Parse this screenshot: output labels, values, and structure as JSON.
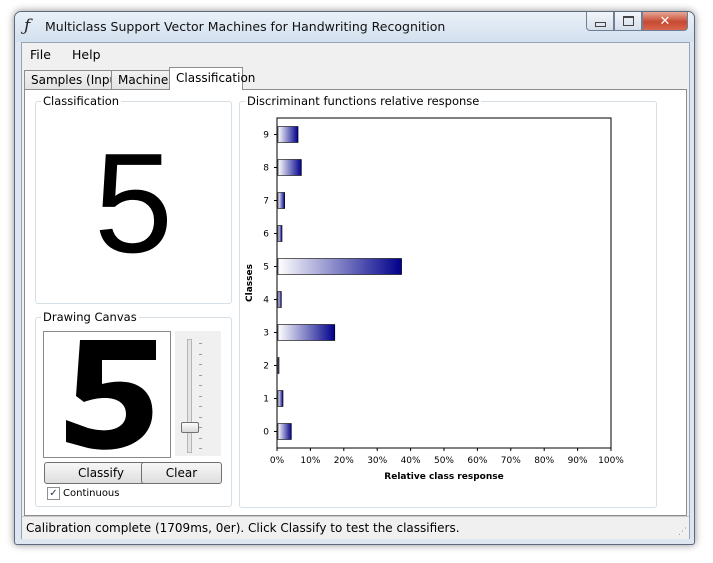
{
  "window": {
    "title": "Multiclass Support Vector Machines for Handwriting Recognition",
    "icon": "function-f-icon"
  },
  "caption_buttons": {
    "minimize": "minimize-icon",
    "maximize": "maximize-icon",
    "close": "close-icon"
  },
  "menu": [
    {
      "label": "File"
    },
    {
      "label": "Help"
    }
  ],
  "tabs": [
    {
      "label": "Samples (Input)",
      "active": false
    },
    {
      "label": "Machines",
      "active": false
    },
    {
      "label": "Classification",
      "active": true
    }
  ],
  "classification_group": {
    "label": "Classification",
    "digit": "5"
  },
  "drawing_group": {
    "label": "Drawing Canvas",
    "classify_label": "Classify",
    "clear_label": "Clear",
    "continuous_label": "Continuous",
    "continuous_checked": true,
    "slider_level": 0.22
  },
  "chart_group": {
    "label": "Discriminant functions relative response"
  },
  "chart_data": {
    "type": "bar",
    "orientation": "horizontal",
    "categories": [
      "0",
      "1",
      "2",
      "3",
      "4",
      "5",
      "6",
      "7",
      "8",
      "9"
    ],
    "values": [
      4,
      1.5,
      0.3,
      17,
      1,
      37,
      1.2,
      2,
      7,
      6
    ],
    "xlabel": "Relative class response",
    "ylabel": "Classes",
    "xlim": [
      0,
      100
    ],
    "xticks": [
      "0%",
      "10%",
      "20%",
      "30%",
      "40%",
      "50%",
      "60%",
      "70%",
      "80%",
      "90%",
      "100%"
    ],
    "grid": false,
    "bar_gradient": [
      "#ffffff",
      "#00008b"
    ]
  },
  "status": {
    "text": "Calibration complete (1709ms, 0er). Click Classify to test the classifiers."
  }
}
